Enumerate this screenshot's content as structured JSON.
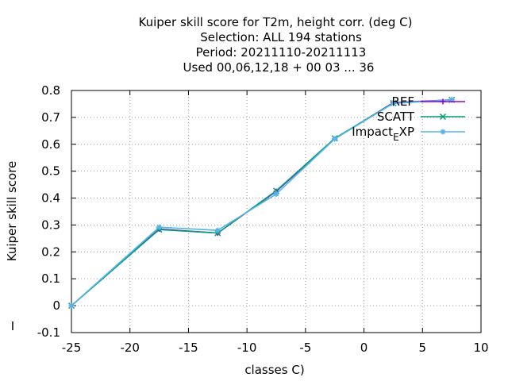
{
  "chart_data": {
    "type": "line",
    "title_lines": [
      "Kuiper skill score  for T2m, height corr. (deg C)",
      "Selection: ALL    194 stations",
      "Period: 20211110-20211113",
      "Used  00,06,12,18 + 00 03 ... 36"
    ],
    "xlabel": "classes C)",
    "ylabel": "Kuiper skill score",
    "ylabel_stray": "I",
    "xlim": [
      -25,
      10
    ],
    "ylim": [
      -0.1,
      0.8
    ],
    "xticks": [
      "-25",
      "-20",
      "-15",
      "-10",
      "-5",
      "0",
      "5",
      "10"
    ],
    "yticks": [
      "-0.1",
      "0",
      "0.1",
      "0.2",
      "0.3",
      "0.4",
      "0.5",
      "0.6",
      "0.7",
      "0.8"
    ],
    "legend_position": "top-right",
    "series": [
      {
        "name": "REF",
        "color": "#9400d3",
        "marker": "plus",
        "x": [
          -25,
          -17.5,
          -12.5,
          -7.5,
          -2.5,
          2.5,
          7.5
        ],
        "y": [
          0.0,
          0.285,
          0.27,
          0.425,
          0.62,
          0.755,
          0.765
        ]
      },
      {
        "name": "SCATT",
        "color": "#009e73",
        "marker": "x",
        "x": [
          -25,
          -17.5,
          -12.5,
          -7.5,
          -2.5,
          2.5,
          7.5
        ],
        "y": [
          0.0,
          0.283,
          0.27,
          0.427,
          0.622,
          0.753,
          0.765
        ]
      },
      {
        "name": "Impact_EXP",
        "legend_label_main": "Impact",
        "legend_label_sub": "E",
        "legend_label_tail": "XP",
        "color": "#56b4e9",
        "marker": "star",
        "x": [
          -25,
          -17.5,
          -12.5,
          -7.5,
          -2.5,
          2.5,
          7.5
        ],
        "y": [
          0.0,
          0.292,
          0.28,
          0.415,
          0.62,
          0.752,
          0.765
        ]
      }
    ]
  }
}
